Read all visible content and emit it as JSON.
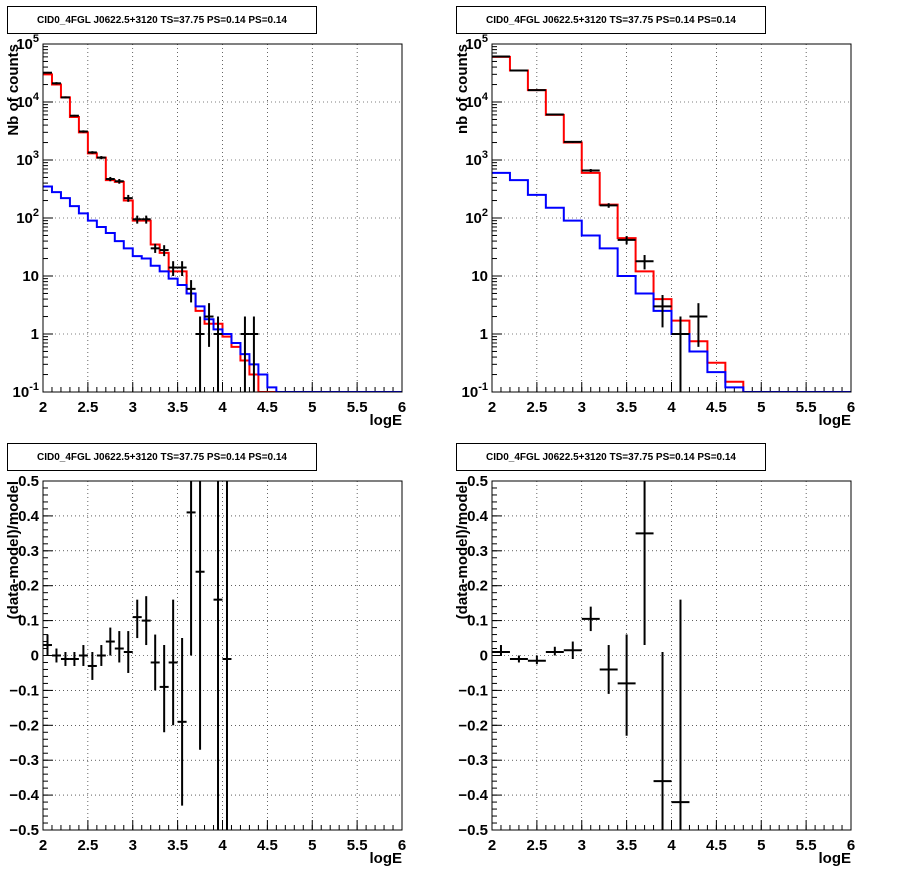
{
  "chart_data": [
    {
      "type": "line",
      "title": "CID0_4FGL J0622.5+3120 TS=37.75 PS=0.14 PS=0.14",
      "xlabel": "logE",
      "ylabel": "Nb of counts",
      "xlim": [
        2,
        6
      ],
      "ylim": [
        0.1,
        100000
      ],
      "yscale": "log",
      "grid": true,
      "xticks": [
        "2",
        "2.5",
        "3",
        "3.5",
        "4",
        "4.5",
        "5",
        "5.5",
        "6"
      ],
      "yticks": [
        {
          "v": 0.1,
          "base": "10",
          "exp": "-1"
        },
        {
          "v": 1,
          "label": "1"
        },
        {
          "v": 10,
          "label": "10"
        },
        {
          "v": 100,
          "base": "10",
          "exp": "2"
        },
        {
          "v": 1000,
          "base": "10",
          "exp": "3"
        },
        {
          "v": 10000,
          "base": "10",
          "exp": "4"
        },
        {
          "v": 100000,
          "base": "10",
          "exp": "5"
        }
      ],
      "bin_edges": [
        2.0,
        2.1,
        2.2,
        2.3,
        2.4,
        2.5,
        2.6,
        2.7,
        2.8,
        2.9,
        3.0,
        3.1,
        3.2,
        3.3,
        3.4,
        3.5,
        3.6,
        3.7,
        3.8,
        3.9,
        4.0,
        4.1,
        4.2,
        4.3,
        4.4,
        4.5,
        4.6,
        4.7,
        4.8,
        4.9,
        5.0,
        5.1,
        5.2,
        5.3,
        5.4,
        5.5,
        5.6,
        5.7,
        5.8,
        5.9,
        6.0
      ],
      "series": [
        {
          "color": "#ff0000",
          "style": "step",
          "values": [
            30000,
            20000,
            12000,
            5500,
            3000,
            1300,
            1100,
            450,
            420,
            200,
            90,
            90,
            35,
            25,
            12,
            12,
            5,
            2.5,
            1.5,
            1.5,
            0.9,
            0.6,
            0.35,
            0.2,
            0.1,
            0.1,
            0.1,
            0.1,
            0.1,
            0.1,
            0.1,
            0.1,
            0.1,
            0.1,
            0.1,
            0.1,
            0.1,
            0.1,
            0.1,
            0.1
          ]
        },
        {
          "color": "#0000ff",
          "style": "step",
          "values": [
            350,
            280,
            220,
            160,
            120,
            90,
            70,
            55,
            40,
            30,
            22,
            20,
            15,
            12,
            9,
            7,
            5,
            3,
            1.8,
            1.2,
            1.0,
            0.7,
            0.45,
            0.3,
            0.2,
            0.12,
            0.1,
            0.1,
            0.1,
            0.1,
            0.1,
            0.1,
            0.1,
            0.1,
            0.1,
            0.1,
            0.1,
            0.1,
            0.1,
            0.1
          ]
        },
        {
          "color": "#000000",
          "style": "points",
          "points": [
            {
              "x": 2.05,
              "y": 32000,
              "lo": 31000,
              "hi": 33000
            },
            {
              "x": 2.15,
              "y": 21000,
              "lo": 20000,
              "hi": 22000
            },
            {
              "x": 2.25,
              "y": 12000,
              "lo": 11500,
              "hi": 12500
            },
            {
              "x": 2.35,
              "y": 5800,
              "lo": 5600,
              "hi": 6000
            },
            {
              "x": 2.45,
              "y": 3100,
              "lo": 2950,
              "hi": 3250
            },
            {
              "x": 2.55,
              "y": 1350,
              "lo": 1280,
              "hi": 1420
            },
            {
              "x": 2.65,
              "y": 1100,
              "lo": 1030,
              "hi": 1170
            },
            {
              "x": 2.75,
              "y": 470,
              "lo": 430,
              "hi": 510
            },
            {
              "x": 2.85,
              "y": 430,
              "lo": 390,
              "hi": 470
            },
            {
              "x": 2.95,
              "y": 220,
              "lo": 190,
              "hi": 250
            },
            {
              "x": 3.05,
              "y": 95,
              "lo": 80,
              "hi": 110
            },
            {
              "x": 3.15,
              "y": 95,
              "lo": 80,
              "hi": 110
            },
            {
              "x": 3.25,
              "y": 30,
              "lo": 25,
              "hi": 36
            },
            {
              "x": 3.35,
              "y": 28,
              "lo": 22,
              "hi": 34
            },
            {
              "x": 3.45,
              "y": 14,
              "lo": 10,
              "hi": 18
            },
            {
              "x": 3.55,
              "y": 14,
              "lo": 10,
              "hi": 18
            },
            {
              "x": 3.65,
              "y": 6,
              "lo": 3.5,
              "hi": 8.5
            },
            {
              "x": 3.75,
              "y": 1,
              "lo": 0.1,
              "hi": 2
            },
            {
              "x": 3.85,
              "y": 2,
              "lo": 0.6,
              "hi": 3.4
            },
            {
              "x": 3.95,
              "y": 1,
              "lo": 0.1,
              "hi": 2
            },
            {
              "x": 4.25,
              "y": 1,
              "lo": 0.1,
              "hi": 2
            },
            {
              "x": 4.35,
              "y": 1,
              "lo": 0.1,
              "hi": 2
            }
          ],
          "xerr": 0.05
        }
      ]
    },
    {
      "type": "line",
      "title": "CID0_4FGL J0622.5+3120 TS=37.75 PS=0.14 PS=0.14",
      "xlabel": "logE",
      "ylabel": "nb of counts",
      "xlim": [
        2,
        6
      ],
      "ylim": [
        0.1,
        100000
      ],
      "yscale": "log",
      "grid": true,
      "xticks": [
        "2",
        "2.5",
        "3",
        "3.5",
        "4",
        "4.5",
        "5",
        "5.5",
        "6"
      ],
      "yticks": [
        {
          "v": 0.1,
          "base": "10",
          "exp": "-1"
        },
        {
          "v": 1,
          "label": "1"
        },
        {
          "v": 10,
          "label": "10"
        },
        {
          "v": 100,
          "base": "10",
          "exp": "2"
        },
        {
          "v": 1000,
          "base": "10",
          "exp": "3"
        },
        {
          "v": 10000,
          "base": "10",
          "exp": "4"
        },
        {
          "v": 100000,
          "base": "10",
          "exp": "5"
        }
      ],
      "bin_edges": [
        2.0,
        2.2,
        2.4,
        2.6,
        2.8,
        3.0,
        3.2,
        3.4,
        3.6,
        3.8,
        4.0,
        4.2,
        4.4,
        4.6,
        4.8,
        5.0,
        5.2,
        5.4,
        5.6,
        5.8,
        6.0
      ],
      "series": [
        {
          "color": "#ff0000",
          "style": "step",
          "values": [
            60000,
            35000,
            16000,
            6000,
            2000,
            600,
            170,
            45,
            12,
            4,
            1.7,
            0.75,
            0.32,
            0.15,
            0.1,
            0.1,
            0.1,
            0.1,
            0.1,
            0.1
          ]
        },
        {
          "color": "#0000ff",
          "style": "step",
          "values": [
            600,
            450,
            250,
            150,
            90,
            50,
            30,
            10,
            5,
            2.5,
            1.0,
            0.5,
            0.22,
            0.12,
            0.1,
            0.1,
            0.1,
            0.1,
            0.1,
            0.1
          ]
        },
        {
          "color": "#000000",
          "style": "points",
          "points": [
            {
              "x": 2.1,
              "y": 61000,
              "lo": 60000,
              "hi": 62000
            },
            {
              "x": 2.3,
              "y": 35000,
              "lo": 34500,
              "hi": 35500
            },
            {
              "x": 2.5,
              "y": 16000,
              "lo": 15700,
              "hi": 16300
            },
            {
              "x": 2.7,
              "y": 6100,
              "lo": 6000,
              "hi": 6200
            },
            {
              "x": 2.9,
              "y": 2050,
              "lo": 1980,
              "hi": 2120
            },
            {
              "x": 3.1,
              "y": 660,
              "lo": 620,
              "hi": 700
            },
            {
              "x": 3.3,
              "y": 165,
              "lo": 150,
              "hi": 180
            },
            {
              "x": 3.5,
              "y": 42,
              "lo": 35,
              "hi": 49
            },
            {
              "x": 3.7,
              "y": 18,
              "lo": 13,
              "hi": 23
            },
            {
              "x": 3.9,
              "y": 3,
              "lo": 1.3,
              "hi": 4.7
            },
            {
              "x": 4.1,
              "y": 1,
              "lo": 0.1,
              "hi": 2
            },
            {
              "x": 4.3,
              "y": 2,
              "lo": 0.6,
              "hi": 3.4
            }
          ],
          "xerr": 0.1
        }
      ]
    },
    {
      "type": "scatter",
      "title": "CID0_4FGL J0622.5+3120 TS=37.75 PS=0.14 PS=0.14",
      "xlabel": "logE",
      "ylabel": "(data-model)/model",
      "xlim": [
        2,
        6
      ],
      "ylim": [
        -0.5,
        0.5
      ],
      "grid": true,
      "xticks": [
        "2",
        "2.5",
        "3",
        "3.5",
        "4",
        "4.5",
        "5",
        "5.5",
        "6"
      ],
      "yticks_values": [
        -0.5,
        -0.4,
        -0.3,
        -0.2,
        -0.1,
        0,
        0.1,
        0.2,
        0.3,
        0.4,
        0.5
      ],
      "yticks": [
        "−0.5",
        "−0.4",
        "−0.3",
        "−0.2",
        "−0.1",
        "0",
        "0.1",
        "0.2",
        "0.3",
        "0.4",
        "0.5"
      ],
      "xerr": 0.05,
      "points": [
        {
          "x": 2.05,
          "y": 0.03,
          "lo": 0.0,
          "hi": 0.06
        },
        {
          "x": 2.15,
          "y": 0.0,
          "lo": -0.02,
          "hi": 0.02
        },
        {
          "x": 2.25,
          "y": -0.01,
          "lo": -0.03,
          "hi": 0.01
        },
        {
          "x": 2.35,
          "y": -0.01,
          "lo": -0.03,
          "hi": 0.01
        },
        {
          "x": 2.45,
          "y": 0.0,
          "lo": -0.03,
          "hi": 0.03
        },
        {
          "x": 2.55,
          "y": -0.03,
          "lo": -0.07,
          "hi": 0.01
        },
        {
          "x": 2.65,
          "y": 0.0,
          "lo": -0.03,
          "hi": 0.03
        },
        {
          "x": 2.75,
          "y": 0.04,
          "lo": 0.0,
          "hi": 0.08
        },
        {
          "x": 2.85,
          "y": 0.02,
          "lo": -0.02,
          "hi": 0.07
        },
        {
          "x": 2.95,
          "y": 0.01,
          "lo": -0.05,
          "hi": 0.07
        },
        {
          "x": 3.05,
          "y": 0.11,
          "lo": 0.05,
          "hi": 0.16
        },
        {
          "x": 3.15,
          "y": 0.1,
          "lo": 0.03,
          "hi": 0.17
        },
        {
          "x": 3.25,
          "y": -0.02,
          "lo": -0.1,
          "hi": 0.06
        },
        {
          "x": 3.35,
          "y": -0.09,
          "lo": -0.22,
          "hi": 0.03
        },
        {
          "x": 3.45,
          "y": -0.02,
          "lo": -0.2,
          "hi": 0.16
        },
        {
          "x": 3.55,
          "y": -0.19,
          "lo": -0.43,
          "hi": 0.05
        },
        {
          "x": 3.65,
          "y": 0.41,
          "lo": 0.0,
          "hi": 0.5
        },
        {
          "x": 3.75,
          "y": 0.24,
          "lo": -0.27,
          "hi": 0.5
        },
        {
          "x": 3.95,
          "y": 0.16,
          "lo": -0.5,
          "hi": 0.5
        },
        {
          "x": 4.05,
          "y": -0.01,
          "lo": -0.5,
          "hi": 0.5
        }
      ]
    },
    {
      "type": "scatter",
      "title": "CID0_4FGL J0622.5+3120 TS=37.75 PS=0.14 PS=0.14",
      "xlabel": "logE",
      "ylabel": "(data-model)/model",
      "xlim": [
        2,
        6
      ],
      "ylim": [
        -0.5,
        0.5
      ],
      "grid": true,
      "xticks": [
        "2",
        "2.5",
        "3",
        "3.5",
        "4",
        "4.5",
        "5",
        "5.5",
        "6"
      ],
      "yticks_values": [
        -0.5,
        -0.4,
        -0.3,
        -0.2,
        -0.1,
        0,
        0.1,
        0.2,
        0.3,
        0.4,
        0.5
      ],
      "yticks": [
        "−0.5",
        "−0.4",
        "−0.3",
        "−0.2",
        "−0.1",
        "0",
        "0.1",
        "0.2",
        "0.3",
        "0.4",
        "0.5"
      ],
      "xerr": 0.1,
      "points": [
        {
          "x": 2.1,
          "y": 0.01,
          "lo": 0.0,
          "hi": 0.03
        },
        {
          "x": 2.3,
          "y": -0.01,
          "lo": -0.02,
          "hi": 0.0
        },
        {
          "x": 2.5,
          "y": -0.015,
          "lo": -0.025,
          "hi": 0.0
        },
        {
          "x": 2.7,
          "y": 0.01,
          "lo": 0.0,
          "hi": 0.025
        },
        {
          "x": 2.9,
          "y": 0.015,
          "lo": -0.01,
          "hi": 0.04
        },
        {
          "x": 3.1,
          "y": 0.105,
          "lo": 0.07,
          "hi": 0.14
        },
        {
          "x": 3.3,
          "y": -0.04,
          "lo": -0.11,
          "hi": 0.03
        },
        {
          "x": 3.5,
          "y": -0.08,
          "lo": -0.23,
          "hi": 0.06
        },
        {
          "x": 3.7,
          "y": 0.35,
          "lo": 0.03,
          "hi": 0.5
        },
        {
          "x": 3.9,
          "y": -0.36,
          "lo": -0.5,
          "hi": 0.01
        },
        {
          "x": 4.1,
          "y": -0.42,
          "lo": -0.5,
          "hi": 0.16
        }
      ]
    }
  ]
}
